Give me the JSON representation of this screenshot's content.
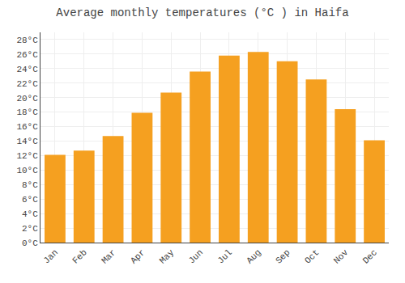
{
  "chart_data": {
    "type": "bar",
    "title": "Average monthly temperatures (°C ) in Haifa",
    "categories": [
      "Jan",
      "Feb",
      "Mar",
      "Apr",
      "May",
      "Jun",
      "Jul",
      "Aug",
      "Sep",
      "Oct",
      "Nov",
      "Dec"
    ],
    "values": [
      12.1,
      12.7,
      14.7,
      17.9,
      20.7,
      23.6,
      25.8,
      26.3,
      25.0,
      22.5,
      18.4,
      14.1
    ],
    "color": "#F5A020",
    "ylim": [
      0,
      29
    ],
    "yticks": [
      {
        "value": 0,
        "label": "0°C"
      },
      {
        "value": 2,
        "label": "2°C"
      },
      {
        "value": 4,
        "label": "4°C"
      },
      {
        "value": 6,
        "label": "6°C"
      },
      {
        "value": 8,
        "label": "8°C"
      },
      {
        "value": 10,
        "label": "10°C"
      },
      {
        "value": 12,
        "label": "12°C"
      },
      {
        "value": 14,
        "label": "14°C"
      },
      {
        "value": 16,
        "label": "16°C"
      },
      {
        "value": 18,
        "label": "18°C"
      },
      {
        "value": 20,
        "label": "20°C"
      },
      {
        "value": 22,
        "label": "22°C"
      },
      {
        "value": 24,
        "label": "24°C"
      },
      {
        "value": 26,
        "label": "26°C"
      },
      {
        "value": 28,
        "label": "28°C"
      }
    ],
    "grid": true
  }
}
